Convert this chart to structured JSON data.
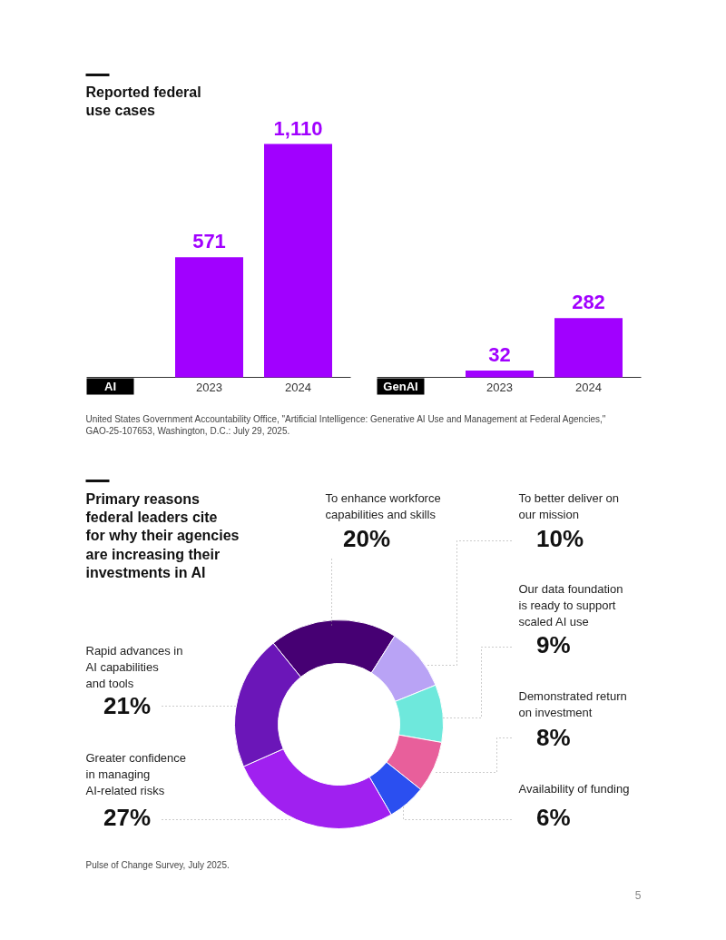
{
  "chart_data": [
    {
      "type": "bar",
      "title": "Reported federal use cases",
      "xlabel": "AI",
      "categories": [
        "2023",
        "2024"
      ],
      "color": "#a100ff",
      "values": [
        571,
        1110
      ],
      "value_labels": [
        "571",
        "1,110"
      ]
    },
    {
      "type": "bar",
      "xlabel": "GenAI",
      "categories": [
        "2023",
        "2024"
      ],
      "color": "#a100ff",
      "values": [
        32,
        282
      ],
      "value_labels": [
        "32",
        "282"
      ],
      "annotations": [
        "United States Government Accountability Office, \"Artificial Intelligence: Generative AI Use and Management at Federal Agencies,\" GAO-25-107653, Washington, D.C.: July 29, 2025."
      ]
    },
    {
      "type": "donut",
      "title": "Primary reasons federal leaders cite for why their agencies are increasing their investments in AI",
      "categories": [
        "To enhance workforce capabilities and skills",
        "To better deliver on our mission",
        "Our data foundation is ready to support scaled AI use",
        "Demonstrated return on investment",
        "Availability of funding",
        "Greater confidence in managing AI-related risks",
        "Rapid advances in AI capabilities and tools"
      ],
      "values": [
        20,
        10,
        9,
        8,
        6,
        27,
        21
      ],
      "colors": [
        "#460073",
        "#b9a3f5",
        "#6ee8dc",
        "#e85f9b",
        "#2b4ff0",
        "#a020f0",
        "#6b16b8"
      ],
      "value_labels": [
        "20%",
        "10%",
        "9%",
        "8%",
        "6%",
        "27%",
        "21%"
      ],
      "annotations": [
        "Pulse of Change Survey, July 2025.",
        "5"
      ]
    }
  ]
}
